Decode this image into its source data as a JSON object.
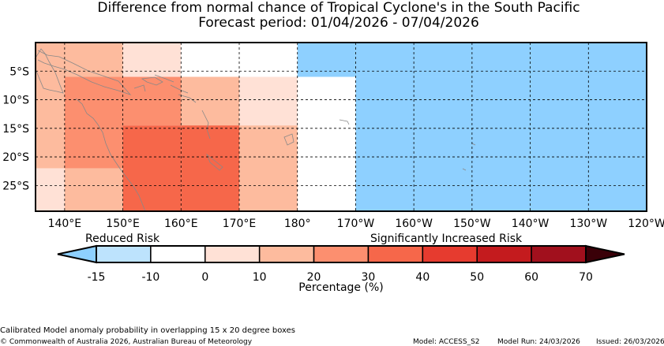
{
  "title": {
    "line1": "Difference from normal chance of Tropical Cyclone's in the South Pacific",
    "line2": "Forecast period: 01/04/2026 - 07/04/2026"
  },
  "map": {
    "lon_range": [
      135,
      240
    ],
    "lat_range": [
      -29.5,
      0
    ],
    "x_ticks": [
      {
        "lon": 140,
        "label": "140°E"
      },
      {
        "lon": 150,
        "label": "150°E"
      },
      {
        "lon": 160,
        "label": "160°E"
      },
      {
        "lon": 170,
        "label": "170°E"
      },
      {
        "lon": 180,
        "label": "180°"
      },
      {
        "lon": 190,
        "label": "170°W"
      },
      {
        "lon": 200,
        "label": "160°W"
      },
      {
        "lon": 210,
        "label": "150°W"
      },
      {
        "lon": 220,
        "label": "140°W"
      },
      {
        "lon": 230,
        "label": "130°W"
      },
      {
        "lon": 240,
        "label": "120°W"
      }
    ],
    "y_ticks": [
      {
        "lat": -5,
        "label": "5°S"
      },
      {
        "lat": -10,
        "label": "10°S"
      },
      {
        "lat": -15,
        "label": "15°S"
      },
      {
        "lat": -20,
        "label": "20°S"
      },
      {
        "lat": -25,
        "label": "25°S"
      }
    ],
    "cells": [
      {
        "lon": [
          135,
          150
        ],
        "lat": [
          0,
          -6
        ],
        "value": 15
      },
      {
        "lon": [
          135,
          140
        ],
        "lat": [
          -6,
          -22
        ],
        "value": 15
      },
      {
        "lon": [
          135,
          140
        ],
        "lat": [
          -22,
          -30
        ],
        "value": 5
      },
      {
        "lon": [
          140,
          150
        ],
        "lat": [
          -6,
          -22
        ],
        "value": 25
      },
      {
        "lon": [
          140,
          150
        ],
        "lat": [
          -22,
          -30
        ],
        "value": 15
      },
      {
        "lon": [
          150,
          160
        ],
        "lat": [
          0,
          -6
        ],
        "value": 5
      },
      {
        "lon": [
          150,
          170
        ],
        "lat": [
          -6,
          -14.5
        ],
        "value": 25
      },
      {
        "lon": [
          150,
          160
        ],
        "lat": [
          -14.5,
          -30
        ],
        "value": 35
      },
      {
        "lon": [
          160,
          170
        ],
        "lat": [
          -6,
          -14.5
        ],
        "value": 15
      },
      {
        "lon": [
          160,
          170
        ],
        "lat": [
          -14.5,
          -30
        ],
        "value": 35
      },
      {
        "lon": [
          170,
          180
        ],
        "lat": [
          0,
          -6
        ],
        "value": -5
      },
      {
        "lon": [
          170,
          180
        ],
        "lat": [
          -6,
          -14.5
        ],
        "value": 5
      },
      {
        "lon": [
          170,
          180
        ],
        "lat": [
          -14.5,
          -30
        ],
        "value": 15
      },
      {
        "lon": [
          180,
          240
        ],
        "lat": [
          0,
          -6
        ],
        "value": -20
      },
      {
        "lon": [
          180,
          190
        ],
        "lat": [
          -6,
          -14.5
        ],
        "value": -5
      },
      {
        "lon": [
          190,
          240
        ],
        "lat": [
          -6,
          -30
        ],
        "value": -20
      }
    ]
  },
  "colorbar": {
    "left_label": "Reduced Risk",
    "right_label": "Significantly Increased Risk",
    "xlabel": "Percentage (%)",
    "under_color": "#8ed0ff",
    "over_color": "#3a0008",
    "bounds": [
      -15,
      -10,
      0,
      10,
      20,
      30,
      40,
      50,
      60,
      70
    ],
    "tick_labels": [
      "-15",
      "-10",
      "0",
      "10",
      "20",
      "30",
      "40",
      "50",
      "60",
      "70"
    ],
    "colors": [
      "#bde3fd",
      "#ffffff",
      "#ffe1d6",
      "#fdbb9e",
      "#fc8f6f",
      "#f6674a",
      "#e63b2f",
      "#c41b1e",
      "#a1101d"
    ]
  },
  "footer": {
    "note": "Calibrated Model anomaly probability in overlapping 15 x 20 degree boxes",
    "copyright": "© Commonwealth of Australia 2026, Australian Bureau of Meteorology",
    "model": "Model: ACCESS_S2",
    "model_run": "Model Run: 24/03/2026",
    "issued": "Issued: 26/03/2026"
  }
}
